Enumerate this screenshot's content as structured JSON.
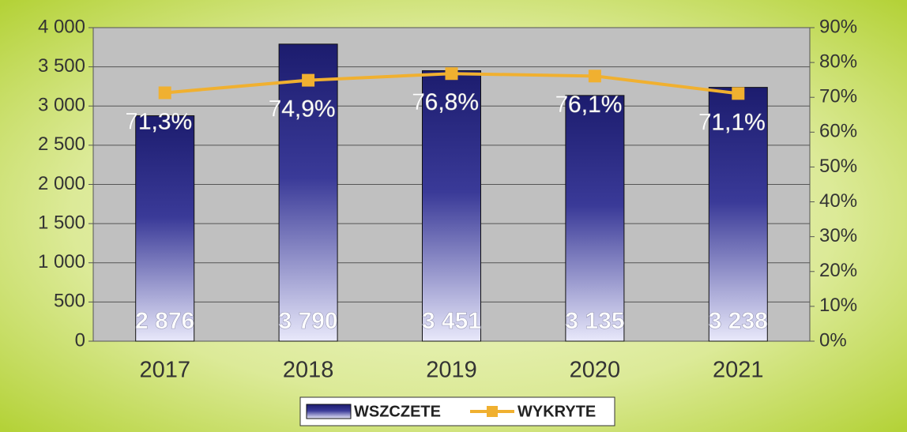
{
  "chart_data": {
    "type": "bar",
    "categories": [
      "2017",
      "2018",
      "2019",
      "2020",
      "2021"
    ],
    "series": [
      {
        "name": "WSZCZETE",
        "type": "bar",
        "color": "#1c1c6e",
        "values": [
          2876,
          3790,
          3451,
          3135,
          3238
        ],
        "value_labels": [
          "2 876",
          "3 790",
          "3 451",
          "3 135",
          "3 238"
        ]
      },
      {
        "name": "WYKRYTE",
        "type": "line",
        "axis": "y2",
        "color": "#f0b030",
        "values": [
          71.3,
          74.9,
          76.8,
          76.1,
          71.1
        ],
        "value_labels": [
          "71,3%",
          "74,9%",
          "76,8%",
          "76,1%",
          "71,1%"
        ]
      }
    ],
    "ylim": [
      0,
      4000
    ],
    "yticks": [
      0,
      500,
      {
        "value": 1000,
        "label": "1 000"
      },
      {
        "value": 1500,
        "label": "1 500"
      },
      {
        "value": 2000,
        "label": "2 000"
      },
      {
        "value": 2500,
        "label": "2 500"
      },
      {
        "value": 3000,
        "label": "3 000"
      },
      {
        "value": 3500,
        "label": "3 500"
      },
      {
        "value": 4000,
        "label": "4 000"
      }
    ],
    "y2lim": [
      0,
      90
    ],
    "y2ticks": [
      {
        "value": 0,
        "label": "0%"
      },
      {
        "value": 10,
        "label": "10%"
      },
      {
        "value": 20,
        "label": "20%"
      },
      {
        "value": 30,
        "label": "30%"
      },
      {
        "value": 40,
        "label": "40%"
      },
      {
        "value": 50,
        "label": "50%"
      },
      {
        "value": 60,
        "label": "60%"
      },
      {
        "value": 70,
        "label": "70%"
      },
      {
        "value": 80,
        "label": "80%"
      },
      {
        "value": 90,
        "label": "90%"
      }
    ],
    "grid": true,
    "legend": "bottom"
  }
}
